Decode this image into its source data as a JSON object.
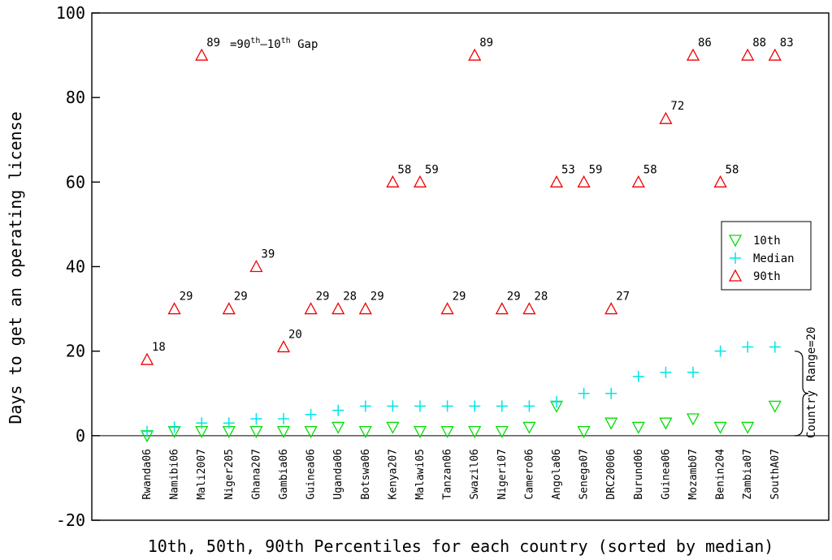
{
  "chart_data": {
    "type": "scatter",
    "xlabel": "10th, 50th, 90th Percentiles for each country (sorted by median)",
    "ylabel": "Days to get an operating license",
    "ylim": [
      -20,
      100
    ],
    "yticks": [
      -20,
      0,
      20,
      40,
      60,
      80,
      100
    ],
    "categories": [
      "Rwanda06",
      "Namibi06",
      "Mali2007",
      "Niger205",
      "Ghana207",
      "Gambia06",
      "Guinea06",
      "Uganda06",
      "Botswa06",
      "Kenya207",
      "Malawi05",
      "Tanzan06",
      "Swazil06",
      "Nigeri07",
      "Camero06",
      "Angola06",
      "Senega07",
      "DRC20006",
      "Burund06",
      "Guinea06",
      "Mozamb07",
      "Benin204",
      "Zambia07",
      "SouthA07"
    ],
    "series": [
      {
        "name": "10th",
        "color": "#00dd00",
        "marker": "triangle-down",
        "values": [
          0,
          1,
          1,
          1,
          1,
          1,
          1,
          2,
          1,
          2,
          1,
          1,
          1,
          1,
          2,
          7,
          1,
          3,
          2,
          3,
          4,
          2,
          2,
          7
        ]
      },
      {
        "name": "Median",
        "color": "#00e5e5",
        "marker": "plus",
        "values": [
          1,
          2,
          3,
          3,
          4,
          4,
          5,
          6,
          7,
          7,
          7,
          7,
          7,
          7,
          7,
          8,
          10,
          10,
          14,
          15,
          15,
          20,
          21,
          21
        ]
      },
      {
        "name": "90th",
        "color": "#ee0000",
        "marker": "triangle-up",
        "values": [
          18,
          30,
          90,
          30,
          40,
          21,
          30,
          30,
          30,
          60,
          60,
          30,
          90,
          30,
          30,
          60,
          60,
          30,
          60,
          75,
          90,
          60,
          90,
          90
        ]
      }
    ],
    "gap_labels": [
      "18",
      "29",
      "89",
      "29",
      "39",
      "20",
      "29",
      "28",
      "29",
      "58",
      "59",
      "29",
      "89",
      "29",
      "28",
      "53",
      "59",
      "27",
      "58",
      "72",
      "86",
      "58",
      "88",
      "83"
    ],
    "gap_annotation": {
      "prefix": "=90",
      "sup1": "th",
      "mid": "–10",
      "sup2": "th",
      "suffix": " Gap"
    },
    "range_annotation": {
      "top": "Range=20",
      "bottom": "Country",
      "from": 0,
      "to": 20
    },
    "legend": {
      "placement": "right"
    },
    "grid": false
  }
}
